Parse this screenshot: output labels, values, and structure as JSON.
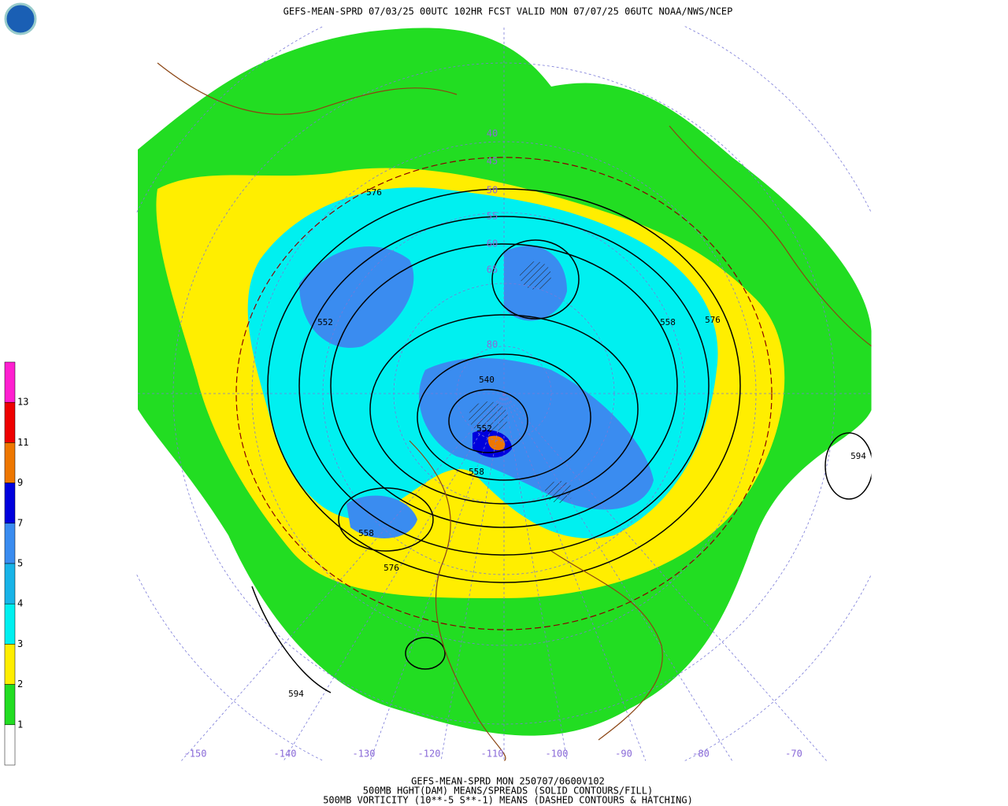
{
  "header": {
    "title": "GEFS-MEAN-SPRD 07/03/25 00UTC 102HR FCST VALID MON 07/07/25 06UTC NOAA/NWS/NCEP"
  },
  "footer": {
    "lines": [
      "GEFS-MEAN-SPRD MON 250707/0600V102",
      "500MB HGHT(DAM) MEANS/SPREADS (SOLID CONTOURS/FILL)",
      "500MB VORTICITY (10**-5 S**-1) MEANS (DASHED CONTOURS & HATCHING)"
    ]
  },
  "colorbar": {
    "levels": [
      13,
      11,
      9,
      7,
      5,
      4,
      3,
      2,
      1
    ],
    "colors": [
      "#ff1fd0",
      "#ee0000",
      "#ee7700",
      "#0000dd",
      "#3a8cf0",
      "#18b4e8",
      "#00f0f0",
      "#ffee00",
      "#22dd22",
      "#ffffff"
    ]
  },
  "map": {
    "longitude_labels": [
      -150,
      -140,
      -130,
      -120,
      -110,
      -100,
      -90,
      -80,
      -70
    ],
    "latitude_labels": [
      40,
      45,
      50,
      55,
      60,
      65,
      80
    ],
    "contour_labels": [
      576,
      552,
      558,
      576,
      540,
      552,
      558,
      558,
      576,
      594,
      594
    ]
  }
}
